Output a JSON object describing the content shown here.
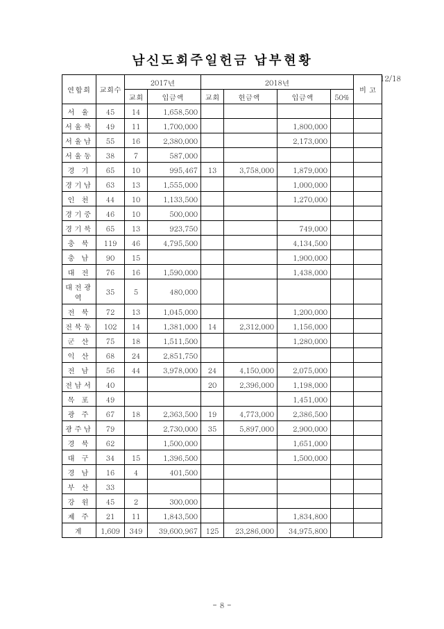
{
  "title": "남신도회주일헌금 납부현황",
  "date_label": "12/18",
  "page_number": "- 8 -",
  "columns": {
    "federation": "연합회",
    "church_count": "교회수",
    "year2017": "2017년",
    "year2018": "2018년",
    "remark": "비 고",
    "church": "교회",
    "deposit": "입금액",
    "offering": "헌금액",
    "fifty": "50%"
  },
  "rows": [
    {
      "name": "서 울",
      "cnt": "45",
      "c17": "14",
      "d17": "1,658,500",
      "c18": "",
      "o18": "",
      "d18": "",
      "p": ""
    },
    {
      "name": "서울북",
      "cnt": "49",
      "c17": "11",
      "d17": "1,700,000",
      "c18": "",
      "o18": "",
      "d18": "1,800,000",
      "p": ""
    },
    {
      "name": "서울남",
      "cnt": "55",
      "c17": "16",
      "d17": "2,380,000",
      "c18": "",
      "o18": "",
      "d18": "2,173,000",
      "p": ""
    },
    {
      "name": "서울동",
      "cnt": "38",
      "c17": "7",
      "d17": "587,000",
      "c18": "",
      "o18": "",
      "d18": "",
      "p": ""
    },
    {
      "name": "경 기",
      "cnt": "65",
      "c17": "10",
      "d17": "995,467",
      "c18": "13",
      "o18": "3,758,000",
      "d18": "1,879,000",
      "p": ""
    },
    {
      "name": "경기남",
      "cnt": "63",
      "c17": "13",
      "d17": "1,555,000",
      "c18": "",
      "o18": "",
      "d18": "1,000,000",
      "p": ""
    },
    {
      "name": "인 천",
      "cnt": "44",
      "c17": "10",
      "d17": "1,133,500",
      "c18": "",
      "o18": "",
      "d18": "1,270,000",
      "p": ""
    },
    {
      "name": "경기중",
      "cnt": "46",
      "c17": "10",
      "d17": "500,000",
      "c18": "",
      "o18": "",
      "d18": "",
      "p": ""
    },
    {
      "name": "경기북",
      "cnt": "65",
      "c17": "13",
      "d17": "923,750",
      "c18": "",
      "o18": "",
      "d18": "749,000",
      "p": ""
    },
    {
      "name": "충 북",
      "cnt": "119",
      "c17": "46",
      "d17": "4,795,500",
      "c18": "",
      "o18": "",
      "d18": "4,134,500",
      "p": ""
    },
    {
      "name": "충 남",
      "cnt": "90",
      "c17": "15",
      "d17": "",
      "c18": "",
      "o18": "",
      "d18": "1,900,000",
      "p": ""
    },
    {
      "name": "대 전",
      "cnt": "76",
      "c17": "16",
      "d17": "1,590,000",
      "c18": "",
      "o18": "",
      "d18": "1,438,000",
      "p": ""
    },
    {
      "name": "대전광역",
      "cnt": "35",
      "c17": "5",
      "d17": "480,000",
      "c18": "",
      "o18": "",
      "d18": "",
      "p": ""
    },
    {
      "name": "전 북",
      "cnt": "72",
      "c17": "13",
      "d17": "1,045,000",
      "c18": "",
      "o18": "",
      "d18": "1,200,000",
      "p": ""
    },
    {
      "name": "전북동",
      "cnt": "102",
      "c17": "14",
      "d17": "1,381,000",
      "c18": "14",
      "o18": "2,312,000",
      "d18": "1,156,000",
      "p": ""
    },
    {
      "name": "군 산",
      "cnt": "75",
      "c17": "18",
      "d17": "1,511,500",
      "c18": "",
      "o18": "",
      "d18": "1,280,000",
      "p": ""
    },
    {
      "name": "익 산",
      "cnt": "68",
      "c17": "24",
      "d17": "2,851,750",
      "c18": "",
      "o18": "",
      "d18": "",
      "p": ""
    },
    {
      "name": "전 남",
      "cnt": "56",
      "c17": "44",
      "d17": "3,978,000",
      "c18": "24",
      "o18": "4,150,000",
      "d18": "2,075,000",
      "p": ""
    },
    {
      "name": "전남서",
      "cnt": "40",
      "c17": "",
      "d17": "",
      "c18": "20",
      "o18": "2,396,000",
      "d18": "1,198,000",
      "p": ""
    },
    {
      "name": "목 포",
      "cnt": "49",
      "c17": "",
      "d17": "",
      "c18": "",
      "o18": "",
      "d18": "1,451,000",
      "p": ""
    },
    {
      "name": "광 주",
      "cnt": "67",
      "c17": "18",
      "d17": "2,363,500",
      "c18": "19",
      "o18": "4,773,000",
      "d18": "2,386,500",
      "p": ""
    },
    {
      "name": "광주남",
      "cnt": "79",
      "c17": "",
      "d17": "2,730,000",
      "c18": "35",
      "o18": "5,897,000",
      "d18": "2,900,000",
      "p": ""
    },
    {
      "name": "경 북",
      "cnt": "62",
      "c17": "",
      "d17": "1,500,000",
      "c18": "",
      "o18": "",
      "d18": "1,651,000",
      "p": ""
    },
    {
      "name": "대 구",
      "cnt": "34",
      "c17": "15",
      "d17": "1,396,500",
      "c18": "",
      "o18": "",
      "d18": "1,500,000",
      "p": ""
    },
    {
      "name": "경 남",
      "cnt": "16",
      "c17": "4",
      "d17": "401,500",
      "c18": "",
      "o18": "",
      "d18": "",
      "p": ""
    },
    {
      "name": "부 산",
      "cnt": "33",
      "c17": "",
      "d17": "",
      "c18": "",
      "o18": "",
      "d18": "",
      "p": ""
    },
    {
      "name": "강 원",
      "cnt": "45",
      "c17": "2",
      "d17": "300,000",
      "c18": "",
      "o18": "",
      "d18": "",
      "p": ""
    },
    {
      "name": "제 주",
      "cnt": "21",
      "c17": "11",
      "d17": "1,843,500",
      "c18": "",
      "o18": "",
      "d18": "1,834,800",
      "p": ""
    }
  ],
  "total": {
    "name": "계",
    "cnt": "1,609",
    "c17": "349",
    "d17": "39,600,967",
    "c18": "125",
    "o18": "23,286,000",
    "d18": "34,975,800",
    "p": ""
  }
}
